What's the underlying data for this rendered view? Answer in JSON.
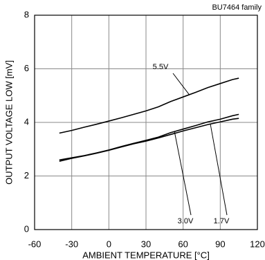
{
  "chart_data": {
    "type": "line",
    "title": "BU7464 family",
    "xlabel": "AMBIENT TEMPERATURE [°C]",
    "ylabel": "OUTPUT VOLTAGE LOW [mV]",
    "x": [
      -40,
      -30,
      -20,
      -10,
      0,
      10,
      20,
      30,
      40,
      50,
      60,
      70,
      80,
      90,
      100,
      105
    ],
    "series": [
      {
        "name": "5.5V",
        "color": "#000000",
        "values": [
          3.6,
          3.7,
          3.82,
          3.93,
          4.05,
          4.17,
          4.3,
          4.43,
          4.58,
          4.78,
          4.95,
          5.12,
          5.3,
          5.45,
          5.6,
          5.65
        ]
      },
      {
        "name": "3.0V",
        "color": "#000000",
        "values": [
          2.6,
          2.68,
          2.76,
          2.86,
          2.97,
          3.1,
          3.22,
          3.33,
          3.45,
          3.62,
          3.75,
          3.88,
          4.02,
          4.12,
          4.25,
          4.3
        ]
      },
      {
        "name": "1.7V",
        "color": "#000000",
        "values": [
          2.55,
          2.66,
          2.75,
          2.85,
          2.96,
          3.08,
          3.2,
          3.3,
          3.42,
          3.55,
          3.68,
          3.8,
          3.92,
          4.02,
          4.12,
          4.15
        ]
      }
    ],
    "xlim": [
      -60,
      120
    ],
    "xticks": [
      -60,
      -30,
      0,
      30,
      60,
      90,
      120
    ],
    "ylim": [
      0,
      8
    ],
    "yticks": [
      0,
      2,
      4,
      6,
      8
    ],
    "grid": true
  }
}
